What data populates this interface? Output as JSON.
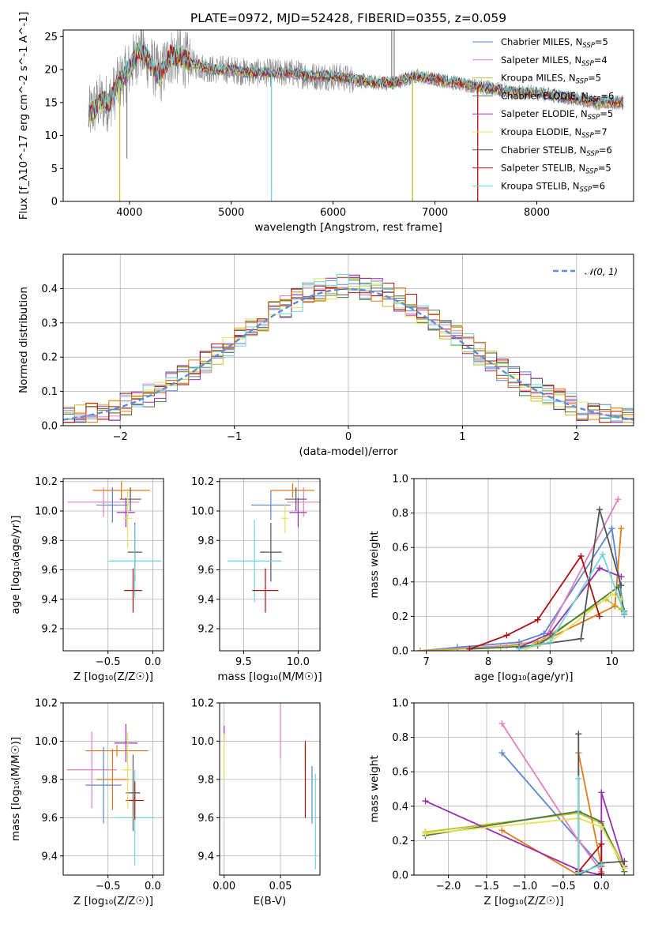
{
  "title": "PLATE=0972, MJD=52428, FIBERID=0355, z=0.059",
  "colors": {
    "Chabrier MILES": "#5b86cf",
    "Salpeter MILES": "#e57fb8",
    "Kroupa MILES": "#c0c02a",
    "Chabrier ELODIE": "#4a7a3e",
    "Salpeter ELODIE": "#9b2fae",
    "Kroupa ELODIE": "#e3e35b",
    "Chabrier STELIB": "#555555",
    "Salpeter STELIB": "#aa1111",
    "Kroupa STELIB": "#6fd4dc",
    "extra_orange": "#e07b1a",
    "data": "#8a8a8a",
    "normal": "#5b8fd9"
  },
  "chart_data": [
    {
      "id": "spectrum",
      "type": "line",
      "xlabel": "wavelength [Angstrom, rest frame]",
      "ylabel": "Flux [f_λ10^-17 erg cm^-2 s^-1 A^-1]",
      "xlim": [
        3350,
        8950
      ],
      "ylim": [
        0,
        26
      ],
      "xticks": [
        4000,
        5000,
        6000,
        7000,
        8000
      ],
      "yticks": [
        0,
        5,
        10,
        15,
        20,
        25
      ],
      "grid": false,
      "legend_position": "top-right",
      "legend": [
        {
          "label": "Chabrier MILES, N_SSP=5",
          "main": "Chabrier MILES, N",
          "sub": "SSP",
          "eq": "=5",
          "color": "Chabrier MILES"
        },
        {
          "label": "Salpeter MILES, N_SSP=4",
          "main": "Salpeter MILES, N",
          "sub": "SSP",
          "eq": "=4",
          "color": "Salpeter MILES"
        },
        {
          "label": "Kroupa MILES, N_SSP=5",
          "main": "Kroupa MILES, N",
          "sub": "SSP",
          "eq": "=5",
          "color": "Kroupa MILES"
        },
        {
          "label": "Chabrier ELODIE, N_SSP=6",
          "main": "Chabrier ELODIE, N",
          "sub": "SSP",
          "eq": "=6",
          "color": "Chabrier ELODIE"
        },
        {
          "label": "Salpeter ELODIE, N_SSP=5",
          "main": "Salpeter ELODIE, N",
          "sub": "SSP",
          "eq": "=5",
          "color": "Salpeter ELODIE"
        },
        {
          "label": "Kroupa ELODIE, N_SSP=7",
          "main": "Kroupa ELODIE, N",
          "sub": "SSP",
          "eq": "=7",
          "color": "Kroupa ELODIE"
        },
        {
          "label": "Chabrier STELIB, N_SSP=6",
          "main": "Chabrier STELIB, N",
          "sub": "SSP",
          "eq": "=6",
          "color": "Chabrier STELIB"
        },
        {
          "label": "Salpeter STELIB, N_SSP=5",
          "main": "Salpeter STELIB, N",
          "sub": "SSP",
          "eq": "=5",
          "color": "Salpeter STELIB"
        },
        {
          "label": "Kroupa STELIB, N_SSP=6",
          "main": "Kroupa STELIB, N",
          "sub": "SSP",
          "eq": "=6",
          "color": "Kroupa STELIB"
        }
      ],
      "continuum_wavelength": [
        3600,
        3700,
        3800,
        3900,
        4000,
        4100,
        4200,
        4300,
        4400,
        4500,
        4600,
        4800,
        5000,
        5200,
        5400,
        5600,
        5800,
        6000,
        6200,
        6400,
        6600,
        6800,
        7000,
        7200,
        7400,
        7600,
        7800,
        8000,
        8200,
        8400,
        8600,
        8800
      ],
      "continuum_flux": [
        13,
        15,
        15,
        18,
        20,
        23,
        21,
        19,
        22,
        22,
        21,
        20,
        20,
        19.5,
        19.5,
        19.5,
        19,
        19,
        18.5,
        18,
        18,
        19,
        18.5,
        18,
        17.5,
        17,
        16.5,
        16.5,
        16,
        15.5,
        15,
        15
      ],
      "model_start": 3600,
      "model_end": 8850,
      "spikes": [
        {
          "x": 3905,
          "y": 0,
          "color": "Kroupa MILES"
        },
        {
          "x": 3975,
          "y": 6.5,
          "color": "data"
        },
        {
          "x": 5395,
          "y": 0,
          "color": "Kroupa STELIB"
        },
        {
          "x": 6780,
          "y": 0,
          "color": "Kroupa MILES"
        },
        {
          "x": 6575,
          "y": 26,
          "color": "data"
        },
        {
          "x": 6600,
          "y": 26,
          "color": "data"
        },
        {
          "x": 7420,
          "y": 0,
          "color": "Salpeter STELIB"
        }
      ]
    },
    {
      "id": "residuals",
      "type": "histogram",
      "xlabel": "(data-model)/error",
      "ylabel": "Normed distribution",
      "xlim": [
        -2.5,
        2.5
      ],
      "ylim": [
        0,
        0.5
      ],
      "xticks": [
        -2,
        -1,
        0,
        1,
        2
      ],
      "yticks": [
        0.0,
        0.1,
        0.2,
        0.3,
        0.4
      ],
      "grid": true,
      "legend": "𝒩(0, 1)",
      "legend_position": "top-right",
      "bin_width": 0.1,
      "series_colors": [
        "Chabrier MILES",
        "Salpeter MILES",
        "Kroupa MILES",
        "Chabrier ELODIE",
        "Salpeter ELODIE",
        "Kroupa ELODIE",
        "Chabrier STELIB",
        "Salpeter STELIB",
        "Kroupa STELIB",
        "extra_orange"
      ]
    },
    {
      "id": "age_vs_Z",
      "type": "scatter",
      "xlabel": "Z [log₁₀(Z/Z☉)]",
      "ylabel": "age [log₁₀(age/yr)]",
      "xlim": [
        -1.0,
        0.12
      ],
      "ylim": [
        9.05,
        10.22
      ],
      "xticks": [
        -0.5,
        0.0
      ],
      "yticks": [
        9.2,
        9.4,
        9.6,
        9.8,
        10.0,
        10.2
      ],
      "grid": true,
      "points": [
        {
          "x": -0.55,
          "y": 10.06,
          "xerr": 0.4,
          "yerr": 0.1,
          "color": "Salpeter MILES"
        },
        {
          "x": -0.35,
          "y": 10.14,
          "xerr": 0.32,
          "yerr": 0.06,
          "color": "extra_orange"
        },
        {
          "x": -0.45,
          "y": 10.04,
          "xerr": 0.18,
          "yerr": 0.12,
          "color": "Chabrier MILES"
        },
        {
          "x": -0.25,
          "y": 10.08,
          "xerr": 0.12,
          "yerr": 0.08,
          "color": "Chabrier STELIB"
        },
        {
          "x": -0.3,
          "y": 9.99,
          "xerr": 0.1,
          "yerr": 0.1,
          "color": "Salpeter ELODIE"
        },
        {
          "x": -0.2,
          "y": 9.72,
          "xerr": 0.08,
          "yerr": 0.2,
          "color": "Chabrier STELIB"
        },
        {
          "x": -0.2,
          "y": 9.66,
          "xerr": 0.3,
          "yerr": 0.25,
          "color": "Kroupa STELIB"
        },
        {
          "x": -0.22,
          "y": 9.46,
          "xerr": 0.1,
          "yerr": 0.15,
          "color": "Salpeter STELIB"
        },
        {
          "x": -0.28,
          "y": 9.95,
          "xerr": 0.05,
          "yerr": 0.2,
          "color": "Kroupa ELODIE"
        }
      ]
    },
    {
      "id": "age_vs_mass",
      "type": "scatter",
      "xlabel": "mass [log₁₀(M/M☉)]",
      "ylabel": "",
      "xlim": [
        9.28,
        10.2
      ],
      "ylim": [
        9.05,
        10.22
      ],
      "xticks": [
        9.5,
        10.0
      ],
      "yticks": [
        9.2,
        9.4,
        9.6,
        9.8,
        10.0,
        10.2
      ],
      "grid": true,
      "points": [
        {
          "x": 9.95,
          "y": 10.14,
          "xerr": 0.2,
          "yerr": 0.05,
          "color": "extra_orange"
        },
        {
          "x": 10.05,
          "y": 10.06,
          "xerr": 0.15,
          "yerr": 0.1,
          "color": "Salpeter MILES"
        },
        {
          "x": 9.75,
          "y": 10.04,
          "xerr": 0.18,
          "yerr": 0.1,
          "color": "Chabrier MILES"
        },
        {
          "x": 9.98,
          "y": 10.08,
          "xerr": 0.1,
          "yerr": 0.08,
          "color": "Chabrier STELIB"
        },
        {
          "x": 10.0,
          "y": 9.99,
          "xerr": 0.08,
          "yerr": 0.1,
          "color": "Salpeter ELODIE"
        },
        {
          "x": 9.75,
          "y": 9.72,
          "xerr": 0.1,
          "yerr": 0.2,
          "color": "Chabrier STELIB"
        },
        {
          "x": 9.6,
          "y": 9.66,
          "xerr": 0.25,
          "yerr": 0.28,
          "color": "Kroupa STELIB"
        },
        {
          "x": 9.7,
          "y": 9.46,
          "xerr": 0.12,
          "yerr": 0.15,
          "color": "Salpeter STELIB"
        },
        {
          "x": 9.88,
          "y": 9.95,
          "xerr": 0.03,
          "yerr": 0.1,
          "color": "Kroupa ELODIE"
        }
      ]
    },
    {
      "id": "mass_weight_vs_age",
      "type": "line",
      "xlabel": "age [log₁₀(age/yr)]",
      "ylabel": "mass weight",
      "xlim": [
        6.8,
        10.35
      ],
      "ylim": [
        0,
        1.0
      ],
      "xticks": [
        7,
        8,
        9,
        10
      ],
      "yticks": [
        0.0,
        0.2,
        0.4,
        0.6,
        0.8,
        1.0
      ],
      "grid": true,
      "series": [
        {
          "color": "Chabrier MILES",
          "x": [
            6.9,
            7.5,
            8.5,
            8.9,
            10.0,
            10.2
          ],
          "y": [
            0.0,
            0.02,
            0.05,
            0.1,
            0.71,
            0.21
          ]
        },
        {
          "color": "Salpeter MILES",
          "x": [
            6.9,
            8.3,
            8.9,
            10.1
          ],
          "y": [
            0.0,
            0.03,
            0.06,
            0.88
          ]
        },
        {
          "color": "Kroupa MILES",
          "x": [
            6.9,
            8.2,
            8.8,
            9.9,
            10.15
          ],
          "y": [
            0.0,
            0.02,
            0.05,
            0.3,
            0.24
          ]
        },
        {
          "color": "extra_orange",
          "x": [
            8.8,
            10.05,
            10.15
          ],
          "y": [
            0.04,
            0.26,
            0.71
          ]
        },
        {
          "color": "Chabrier ELODIE",
          "x": [
            7.7,
            8.8,
            10.1,
            10.2
          ],
          "y": [
            0.01,
            0.03,
            0.37,
            0.23
          ]
        },
        {
          "color": "Salpeter ELODIE",
          "x": [
            8.5,
            9.0,
            9.8,
            10.15
          ],
          "y": [
            0.02,
            0.1,
            0.48,
            0.43
          ]
        },
        {
          "color": "Kroupa ELODIE",
          "x": [
            8.6,
            9.0,
            10.0,
            10.15
          ],
          "y": [
            0.01,
            0.05,
            0.33,
            0.3
          ]
        },
        {
          "color": "Chabrier STELIB",
          "x": [
            8.5,
            9.5,
            9.8,
            10.15
          ],
          "y": [
            0.02,
            0.07,
            0.82,
            0.38
          ]
        },
        {
          "color": "Salpeter STELIB",
          "x": [
            7.7,
            8.3,
            8.8,
            9.5,
            9.8
          ],
          "y": [
            0.01,
            0.09,
            0.18,
            0.55,
            0.2
          ]
        },
        {
          "color": "Kroupa STELIB",
          "x": [
            8.5,
            9.0,
            9.85,
            10.2
          ],
          "y": [
            0.01,
            0.05,
            0.56,
            0.22
          ]
        }
      ]
    },
    {
      "id": "mass_vs_Z",
      "type": "scatter",
      "xlabel": "Z [log₁₀(Z/Z☉)]",
      "ylabel": "mass [log₁₀(M/M☉)]",
      "xlim": [
        -1.0,
        0.12
      ],
      "ylim": [
        9.3,
        10.2
      ],
      "xticks": [
        -0.5,
        0.0
      ],
      "yticks": [
        9.4,
        9.6,
        9.8,
        10.0,
        10.2
      ],
      "grid": true,
      "points": [
        {
          "x": -0.68,
          "y": 9.85,
          "xerr": 0.28,
          "yerr": 0.2,
          "color": "Salpeter MILES"
        },
        {
          "x": -0.4,
          "y": 9.95,
          "xerr": 0.35,
          "yerr": 0.03,
          "color": "extra_orange"
        },
        {
          "x": -0.45,
          "y": 9.8,
          "xerr": 0.18,
          "yerr": 0.16,
          "color": "extra_orange"
        },
        {
          "x": -0.55,
          "y": 9.77,
          "xerr": 0.2,
          "yerr": 0.2,
          "color": "Chabrier MILES"
        },
        {
          "x": -0.3,
          "y": 9.99,
          "xerr": 0.13,
          "yerr": 0.1,
          "color": "Salpeter ELODIE"
        },
        {
          "x": -0.22,
          "y": 9.73,
          "xerr": 0.08,
          "yerr": 0.2,
          "color": "Chabrier STELIB"
        },
        {
          "x": -0.2,
          "y": 9.6,
          "xerr": 0.22,
          "yerr": 0.25,
          "color": "Kroupa STELIB"
        },
        {
          "x": -0.2,
          "y": 9.69,
          "xerr": 0.1,
          "yerr": 0.1,
          "color": "Salpeter STELIB"
        },
        {
          "x": -0.28,
          "y": 9.85,
          "xerr": 0.06,
          "yerr": 0.2,
          "color": "Kroupa ELODIE"
        }
      ]
    },
    {
      "id": "mass_vs_ebv",
      "type": "scatter",
      "xlabel": "E(B-V)",
      "ylabel": "",
      "xlim": [
        -0.004,
        0.085
      ],
      "ylim": [
        9.3,
        10.2
      ],
      "xticks": [
        0.0,
        0.05
      ],
      "yticks": [
        9.4,
        9.6,
        9.8,
        10.0,
        10.2
      ],
      "grid": true,
      "points": [
        {
          "x": 0.0,
          "y": 10.04,
          "xerr": 0.0,
          "yerr": 0.04,
          "color": "Salpeter ELODIE"
        },
        {
          "x": 0.0,
          "y": 9.92,
          "xerr": 0.0,
          "yerr": 0.12,
          "color": "Kroupa ELODIE"
        },
        {
          "x": 0.05,
          "y": 10.06,
          "xerr": 0.0,
          "yerr": 0.15,
          "color": "Salpeter MILES"
        },
        {
          "x": 0.072,
          "y": 9.9,
          "xerr": 0.0,
          "yerr": 0.08,
          "color": "extra_orange"
        },
        {
          "x": 0.072,
          "y": 9.8,
          "xerr": 0.0,
          "yerr": 0.2,
          "color": "Salpeter STELIB"
        },
        {
          "x": 0.078,
          "y": 9.72,
          "xerr": 0.0,
          "yerr": 0.15,
          "color": "Chabrier MILES"
        },
        {
          "x": 0.081,
          "y": 9.58,
          "xerr": 0.0,
          "yerr": 0.25,
          "color": "Kroupa STELIB"
        }
      ]
    },
    {
      "id": "mass_weight_vs_Z",
      "type": "line",
      "xlabel": "Z [log₁₀(Z/Z☉)]",
      "ylabel": "mass weight",
      "xlim": [
        -2.45,
        0.42
      ],
      "ylim": [
        0,
        1.0
      ],
      "xticks": [
        -2.0,
        -1.5,
        -1.0,
        -0.5,
        0.0
      ],
      "yticks": [
        0.0,
        0.2,
        0.4,
        0.6,
        0.8,
        1.0
      ],
      "grid": true,
      "series": [
        {
          "color": "Chabrier MILES",
          "x": [
            -1.3,
            -0.3,
            0.0
          ],
          "y": [
            0.71,
            0.2,
            0.05
          ]
        },
        {
          "color": "Salpeter MILES",
          "x": [
            -1.3,
            -0.3,
            0.0
          ],
          "y": [
            0.88,
            0.2,
            0.02
          ]
        },
        {
          "color": "Kroupa MILES",
          "x": [
            -2.3,
            -0.3,
            0.0,
            0.3
          ],
          "y": [
            0.25,
            0.36,
            0.3,
            0.05
          ]
        },
        {
          "color": "extra_orange",
          "x": [
            -1.3,
            -0.3,
            -0.3,
            0.0
          ],
          "y": [
            0.26,
            0.0,
            0.71,
            0.05
          ]
        },
        {
          "color": "Chabrier ELODIE",
          "x": [
            -2.3,
            -0.3,
            0.0,
            0.3
          ],
          "y": [
            0.23,
            0.37,
            0.31,
            0.02
          ]
        },
        {
          "color": "Salpeter ELODIE",
          "x": [
            -2.3,
            -0.3,
            0.0,
            0.0,
            0.3
          ],
          "y": [
            0.43,
            0.03,
            0.0,
            0.48,
            0.05
          ]
        },
        {
          "color": "Kroupa ELODIE",
          "x": [
            -2.3,
            -0.3,
            0.0,
            0.3
          ],
          "y": [
            0.24,
            0.33,
            0.28,
            0.04
          ]
        },
        {
          "color": "Chabrier STELIB",
          "x": [
            -0.3,
            -0.3,
            0.0,
            0.3
          ],
          "y": [
            0.82,
            0.0,
            0.07,
            0.08
          ]
        },
        {
          "color": "Salpeter STELIB",
          "x": [
            -0.3,
            0.0,
            0.0
          ],
          "y": [
            0.02,
            0.18,
            0.01
          ]
        },
        {
          "color": "Kroupa STELIB",
          "x": [
            -0.3,
            -0.3,
            0.0
          ],
          "y": [
            0.56,
            0.01,
            0.06
          ]
        }
      ]
    }
  ]
}
